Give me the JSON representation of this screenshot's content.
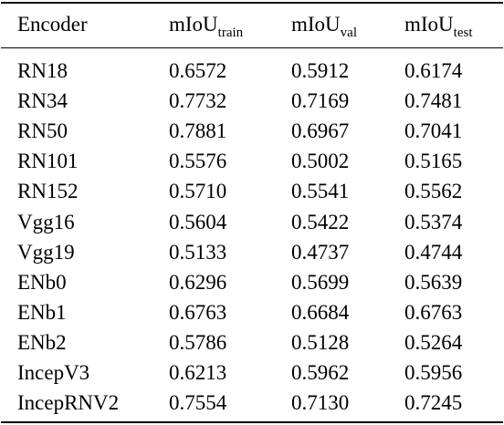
{
  "table": {
    "columns": [
      {
        "label": "Encoder",
        "base": "Encoder",
        "sub": ""
      },
      {
        "label": "mIoU_train",
        "base": "mIoU",
        "sub": "train"
      },
      {
        "label": "mIoU_val",
        "base": "mIoU",
        "sub": "val"
      },
      {
        "label": "mIoU_test",
        "base": "mIoU",
        "sub": "test"
      }
    ],
    "rows": [
      [
        "RN18",
        "0.6572",
        "0.5912",
        "0.6174"
      ],
      [
        "RN34",
        "0.7732",
        "0.7169",
        "0.7481"
      ],
      [
        "RN50",
        "0.7881",
        "0.6967",
        "0.7041"
      ],
      [
        "RN101",
        "0.5576",
        "0.5002",
        "0.5165"
      ],
      [
        "RN152",
        "0.5710",
        "0.5541",
        "0.5562"
      ],
      [
        "Vgg16",
        "0.5604",
        "0.5422",
        "0.5374"
      ],
      [
        "Vgg19",
        "0.5133",
        "0.4737",
        "0.4744"
      ],
      [
        "ENb0",
        "0.6296",
        "0.5699",
        "0.5639"
      ],
      [
        "ENb1",
        "0.6763",
        "0.6684",
        "0.6763"
      ],
      [
        "ENb2",
        "0.5786",
        "0.5128",
        "0.5264"
      ],
      [
        "IncepV3",
        "0.6213",
        "0.5962",
        "0.5956"
      ],
      [
        "IncepRNV2",
        "0.7554",
        "0.7130",
        "0.7245"
      ]
    ]
  }
}
